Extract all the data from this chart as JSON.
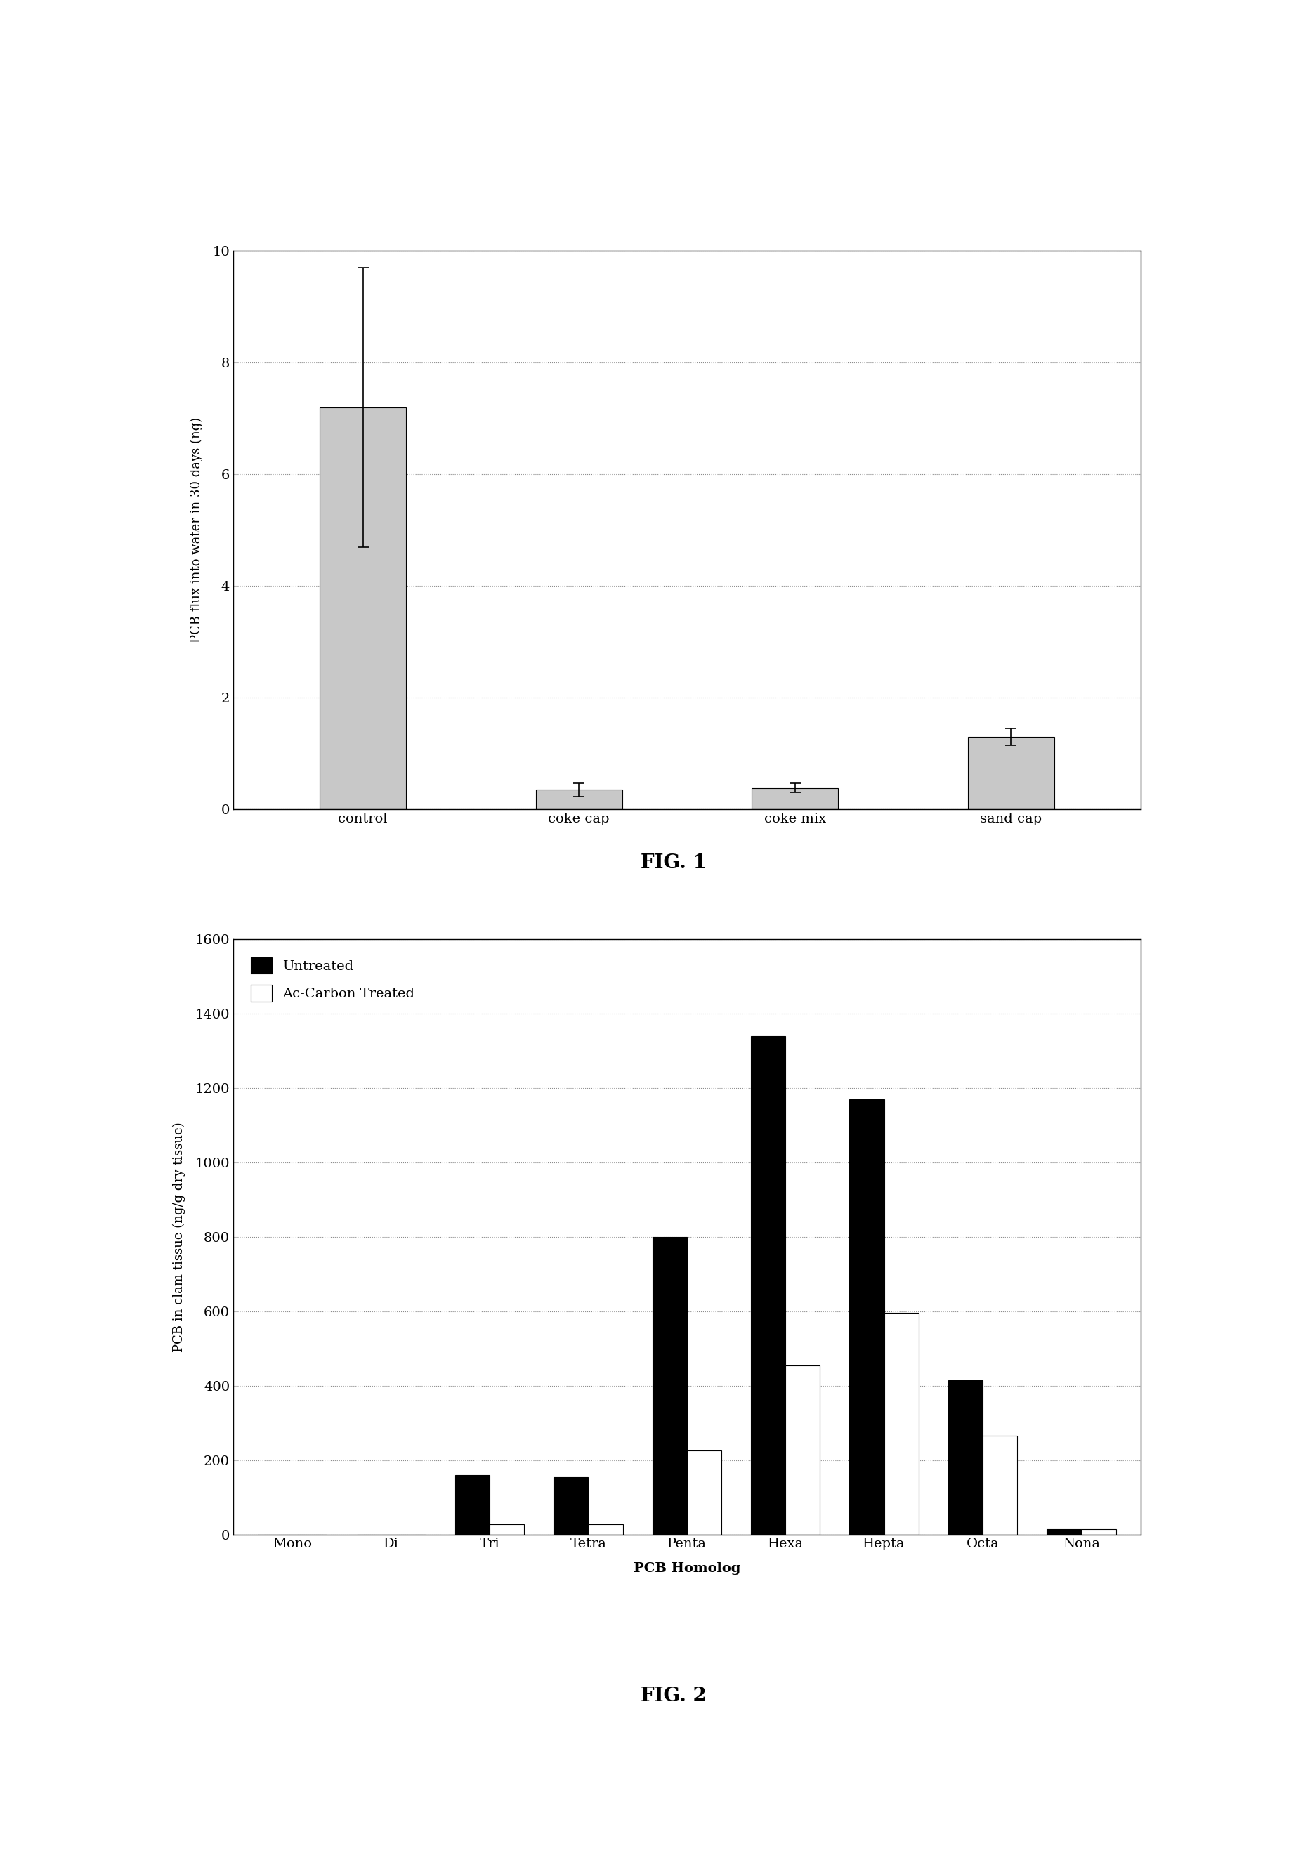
{
  "fig1": {
    "categories": [
      "control",
      "coke cap",
      "coke mix",
      "sand cap"
    ],
    "values": [
      7.2,
      0.35,
      0.38,
      1.3
    ],
    "errors": [
      2.5,
      0.12,
      0.08,
      0.15
    ],
    "ylabel": "PCB flux into water in 30 days (ng)",
    "ylim": [
      0,
      10
    ],
    "yticks": [
      0,
      2,
      4,
      6,
      8,
      10
    ],
    "bar_color": "#c8c8c8",
    "caption": "FIG. 1"
  },
  "fig2": {
    "categories": [
      "Mono",
      "Di",
      "Tri",
      "Tetra",
      "Penta",
      "Hexa",
      "Hepta",
      "Octa",
      "Nona"
    ],
    "untreated": [
      0,
      0,
      160,
      155,
      800,
      1340,
      1170,
      415,
      15
    ],
    "treated": [
      0,
      0,
      28,
      28,
      225,
      455,
      595,
      265,
      15
    ],
    "xlabel": "PCB Homolog",
    "ylabel": "PCB in clam tissue (ng/g dry tissue)",
    "ylim": [
      0,
      1600
    ],
    "yticks": [
      0,
      200,
      400,
      600,
      800,
      1000,
      1200,
      1400,
      1600
    ],
    "color_untreated": "#000000",
    "color_treated": "#ffffff",
    "caption": "FIG. 2",
    "legend_untreated": "Untreated",
    "legend_treated": "Ac-Carbon Treated"
  },
  "background_color": "#ffffff",
  "tick_fontsize": 13,
  "axis_label_fontsize": 13,
  "caption_fontsize": 20,
  "legend_fontsize": 14
}
